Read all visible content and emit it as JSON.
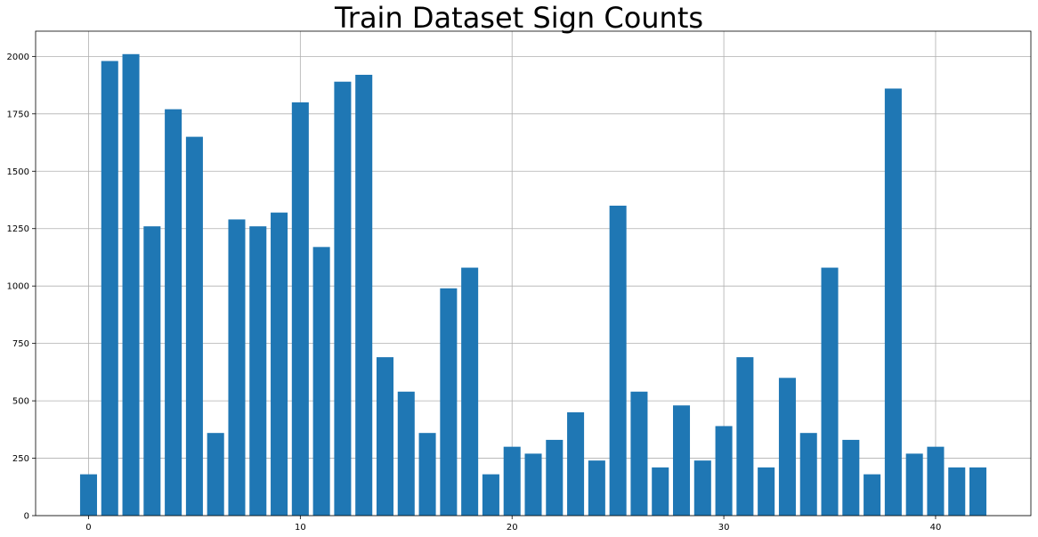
{
  "chart_data": {
    "type": "bar",
    "title": "Train Dataset Sign Counts",
    "xlabel": "",
    "ylabel": "",
    "x": [
      0,
      1,
      2,
      3,
      4,
      5,
      6,
      7,
      8,
      9,
      10,
      11,
      12,
      13,
      14,
      15,
      16,
      17,
      18,
      19,
      20,
      21,
      22,
      23,
      24,
      25,
      26,
      27,
      28,
      29,
      30,
      31,
      32,
      33,
      34,
      35,
      36,
      37,
      38,
      39,
      40,
      41,
      42
    ],
    "values": [
      180,
      1980,
      2010,
      1260,
      1770,
      1650,
      360,
      1290,
      1260,
      1320,
      1800,
      1170,
      1890,
      1920,
      690,
      540,
      360,
      990,
      1080,
      180,
      300,
      270,
      330,
      450,
      240,
      1350,
      540,
      210,
      480,
      240,
      390,
      690,
      210,
      600,
      360,
      1080,
      330,
      180,
      1860,
      270,
      300,
      210,
      210
    ],
    "xlim": [
      -2.5,
      44.5
    ],
    "ylim": [
      0,
      2110
    ],
    "xticks": [
      0,
      10,
      20,
      30,
      40
    ],
    "yticks": [
      0,
      250,
      500,
      750,
      1000,
      1250,
      1500,
      1750,
      2000
    ],
    "bar_width": 0.8,
    "grid": true,
    "bar_color": "#1f77b4",
    "grid_color": "#b0b0b0"
  }
}
